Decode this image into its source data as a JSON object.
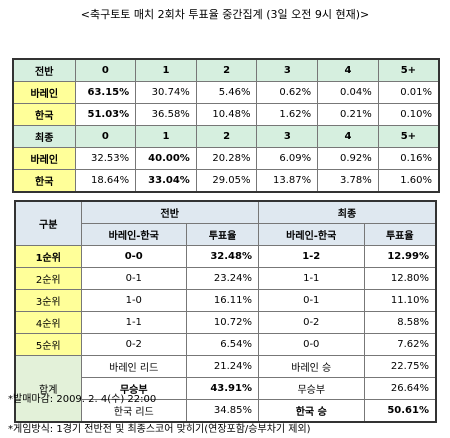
{
  "title": "<축구토토 매치 2회차 투표율 중간집계 (3일 오전 9시 현재)>",
  "table1": {
    "rows": [
      [
        "전반",
        "0",
        "1",
        "2",
        "3",
        "4",
        "5+"
      ],
      [
        "바레인",
        "63.15%",
        "30.74%",
        "5.46%",
        "0.62%",
        "0.04%",
        "0.01%"
      ],
      [
        "한국",
        "51.03%",
        "36.58%",
        "10.48%",
        "1.62%",
        "0.21%",
        "0.10%"
      ],
      [
        "최종",
        "0",
        "1",
        "2",
        "3",
        "4",
        "5+"
      ],
      [
        "바레인",
        "32.53%",
        "40.00%",
        "20.28%",
        "6.09%",
        "0.92%",
        "0.16%"
      ],
      [
        "한국",
        "18.64%",
        "33.04%",
        "29.05%",
        "13.87%",
        "3.78%",
        "1.60%"
      ]
    ]
  },
  "table2": {
    "header": [
      [
        "구분",
        "전반",
        "최종"
      ],
      [
        "바레인-한국",
        "투표율",
        "바레인-한국",
        "투표율"
      ]
    ],
    "rows": [
      [
        "1순위",
        "0-0",
        "32.48%",
        "1-2",
        "12.99%"
      ],
      [
        "2순위",
        "0-1",
        "23.24%",
        "1-1",
        "12.80%"
      ],
      [
        "3순위",
        "1-0",
        "16.11%",
        "0-1",
        "11.10%"
      ],
      [
        "4순위",
        "1-1",
        "10.72%",
        "0-2",
        "8.58%"
      ],
      [
        "5순위",
        "0-2",
        "6.54%",
        "0-0",
        "7.62%"
      ]
    ],
    "total": {
      "label": "합계",
      "rows": [
        [
          "바레인 리드",
          "21.24%",
          "바레인 승",
          "22.75%"
        ],
        [
          "무승부",
          "43.91%",
          "무승부",
          "26.64%"
        ],
        [
          "한국 리드",
          "34.85%",
          "한국 승",
          "50.61%"
        ]
      ]
    }
  },
  "notes": [
    "*발매마감: 2009. 2. 4(수) 22:00",
    "*게임방식: 1경기 전반전 및 최종스코어 맞히기(연장포함/승부차기 제외)"
  ]
}
